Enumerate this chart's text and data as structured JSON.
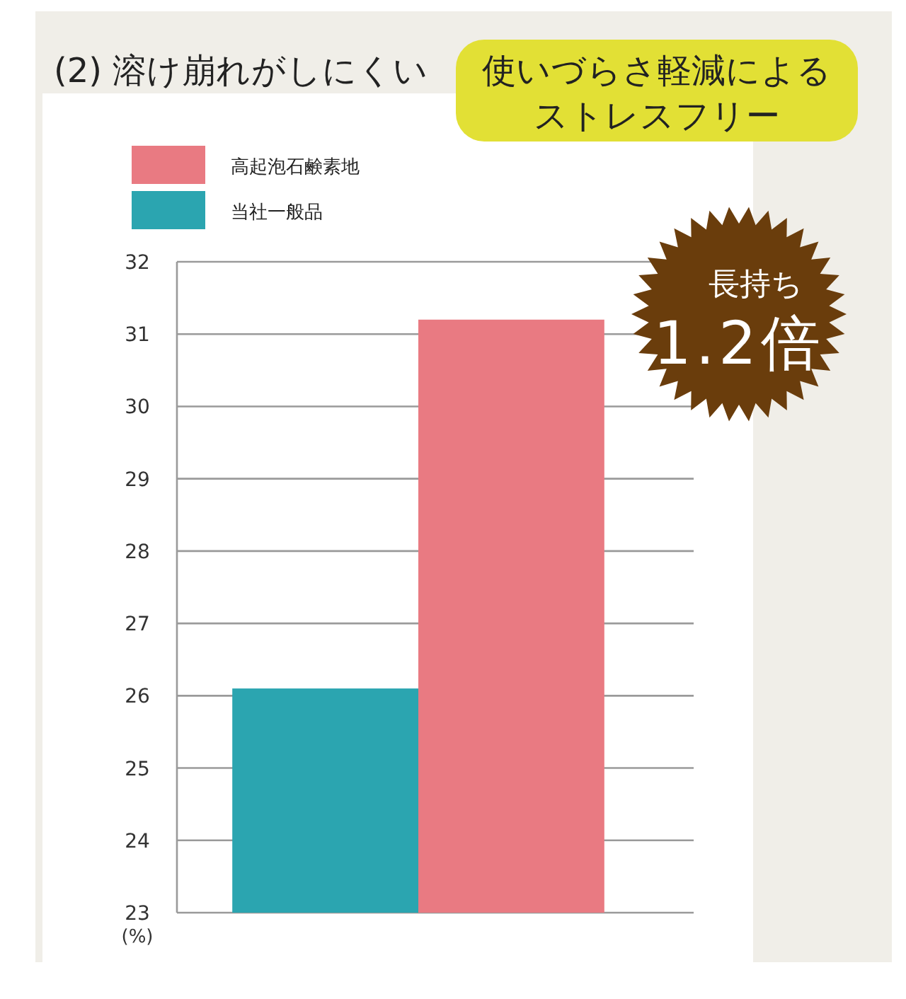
{
  "chart_data": {
    "type": "bar",
    "title": "(2) 溶け崩れがしにくい",
    "ylabel": "(%)",
    "categories": [
      null
    ],
    "series": [
      {
        "name": "当社一般品",
        "color": "#2ba5b0",
        "values": [
          26.1
        ]
      },
      {
        "name": "高起泡石鹸素地",
        "color": "#e97a82",
        "values": [
          31.2
        ]
      }
    ],
    "ylim": [
      23,
      32
    ],
    "yticks": [
      23,
      24,
      25,
      26,
      27,
      28,
      29,
      30,
      31,
      32
    ],
    "grid": "y",
    "legend": "top left",
    "annotations": [
      "使いづらさ軽減によるストレスフリー",
      "長持ち",
      "1.2倍"
    ]
  }
}
